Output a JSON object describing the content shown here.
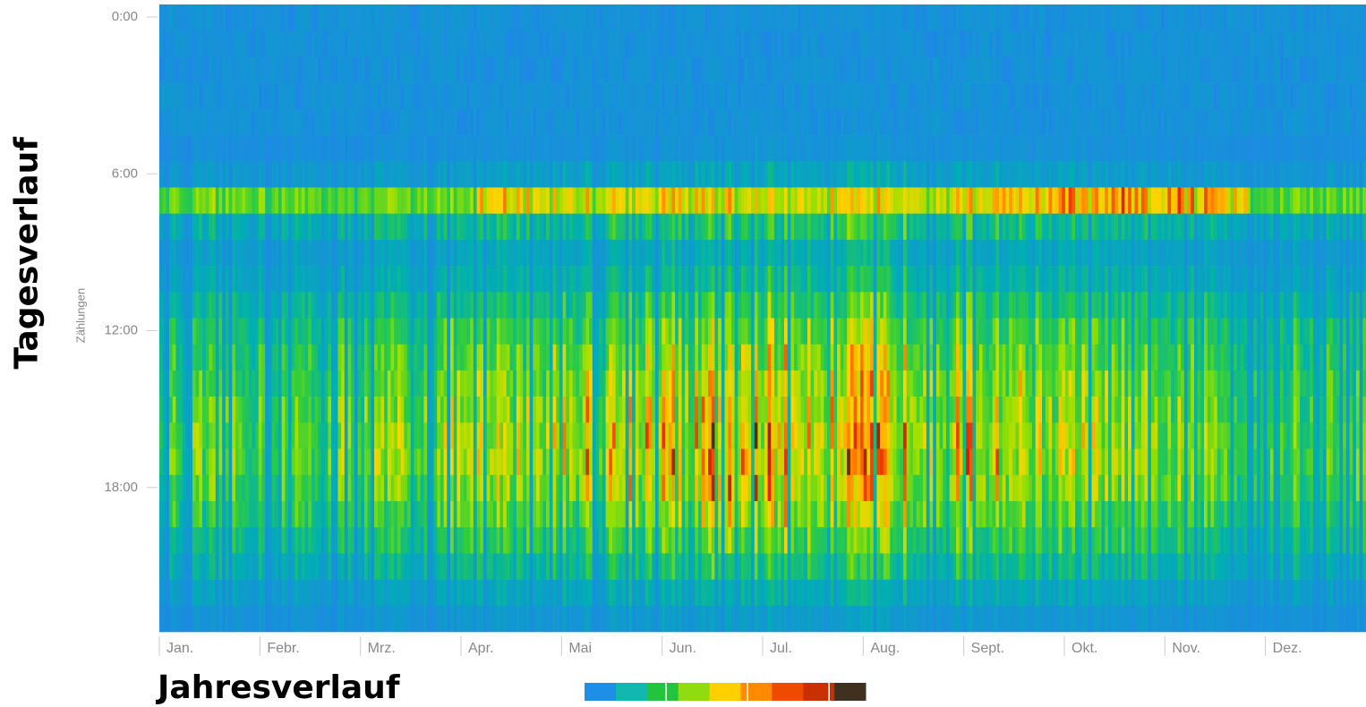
{
  "chart_data": {
    "type": "heatmap",
    "title_y": "Tagesverlauf",
    "title_x": "Jahresverlauf",
    "ylabel": "Zählungen",
    "y_ticks": [
      "0:00",
      "6:00",
      "12:00",
      "18:00"
    ],
    "y_tick_hours": [
      0,
      6,
      12,
      18
    ],
    "x_months": [
      "Jan.",
      "Febr.",
      "Mrz.",
      "Apr.",
      "Mai",
      "Jun.",
      "Jul.",
      "Aug.",
      "Sept.",
      "Okt.",
      "Nov.",
      "Dez."
    ],
    "days": 365,
    "hours": 24,
    "colorscale": [
      "#1e88e5",
      "#00b0b0",
      "#2ecc40",
      "#9be000",
      "#ffd400",
      "#ff7a00",
      "#e02000",
      "#303000"
    ],
    "legend_colors": [
      "#1e8fe8",
      "#12b8b0",
      "#22c43c",
      "#8fdc10",
      "#ffcf00",
      "#ff8a00",
      "#ee4a00",
      "#c83000",
      "#403020"
    ]
  }
}
